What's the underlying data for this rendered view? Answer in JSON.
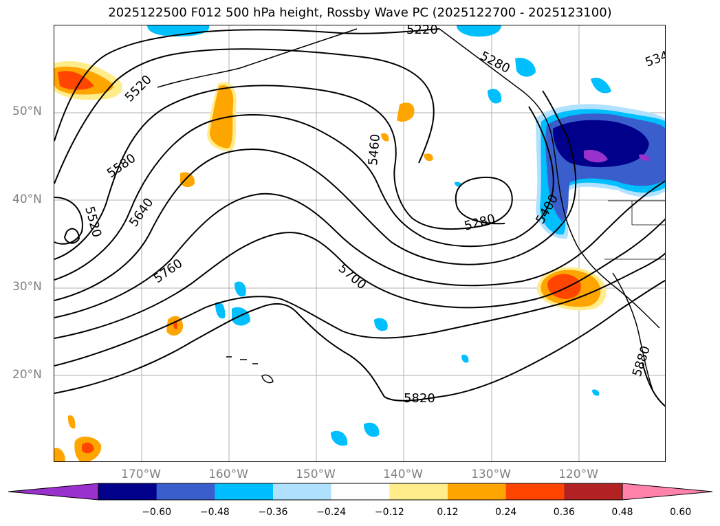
{
  "title": "2025122500 F012 500 hPa height, Rossby Wave PC (2025122700 - 2025123100)",
  "latitude_labels": [
    "50°N",
    "40°N",
    "30°N",
    "20°N"
  ],
  "longitude_labels": [
    "170°W",
    "160°W",
    "150°W",
    "140°W",
    "130°W",
    "120°W"
  ],
  "contour_labels": {
    "c5220": "5220",
    "c5280a": "5280",
    "c5340": "534",
    "c5520a": "5520",
    "c5580": "5580",
    "c5460": "5460",
    "c5640": "5640",
    "c5520b": "5520",
    "c5280b": "5280",
    "c5400": "5400",
    "c5760": "5760",
    "c5700": "5700",
    "c5820": "5820",
    "c5880": "5880"
  },
  "colorbar": {
    "ticks": [
      "−0.60",
      "−0.48",
      "−0.36",
      "−0.24",
      "−0.12",
      "0.12",
      "0.24",
      "0.36",
      "0.48",
      "0.60"
    ],
    "colors": [
      "#9932cc",
      "#00008b",
      "#3a5fcd",
      "#00bfff",
      "#b0e2ff",
      "#ffffff",
      "#ffec8b",
      "#ffa500",
      "#ff4500",
      "#b22222",
      "#ff82ab"
    ]
  }
}
